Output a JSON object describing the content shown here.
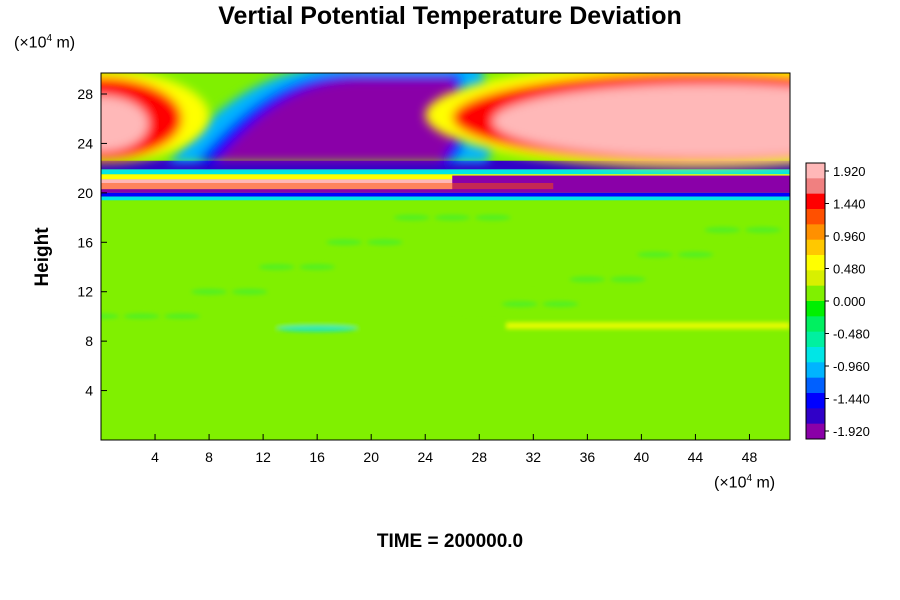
{
  "chart_data": {
    "type": "heatmap",
    "title": "Vertial Potential Temperature Deviation",
    "ylabel": "Height",
    "y_unit": {
      "prefix": "(×10",
      "exp": "4",
      "suffix": " m)"
    },
    "x_unit": {
      "prefix": "(×10",
      "exp": "4",
      "suffix": " m)"
    },
    "footer": "TIME = 200000.0",
    "xlim": [
      0,
      51
    ],
    "ylim": [
      0,
      29.7
    ],
    "x_ticks": [
      4,
      8,
      12,
      16,
      20,
      24,
      28,
      32,
      36,
      40,
      44,
      48
    ],
    "y_ticks": [
      4,
      8,
      12,
      16,
      20,
      24,
      28
    ],
    "colorbar": {
      "min": -2.0,
      "max": 2.0,
      "labels": [
        "1.920",
        "1.440",
        "0.960",
        "0.480",
        "0.000",
        "-0.480",
        "-0.960",
        "-1.440",
        "-1.920"
      ],
      "colors": [
        "#8a00a8",
        "#3000c8",
        "#0000ff",
        "#0060ff",
        "#00b4ff",
        "#00e6e6",
        "#00f0a0",
        "#00f060",
        "#00f000",
        "#80f000",
        "#d8f000",
        "#ffff00",
        "#ffc800",
        "#ff9000",
        "#ff5000",
        "#ff0000",
        "#f08080",
        "#ffb8b8"
      ]
    },
    "features": [
      {
        "name": "negative-anomaly-upper-left",
        "x": [
          6,
          27
        ],
        "y": [
          22.5,
          29.7
        ],
        "value": -2.0
      },
      {
        "name": "positive-anomaly-upper-right",
        "x": [
          32,
          51
        ],
        "y": [
          22.5,
          29.7
        ],
        "value": 2.0
      },
      {
        "name": "positive-anomaly-left-edge",
        "x": [
          0,
          5
        ],
        "y": [
          22.5,
          29.7
        ],
        "value": 1.9
      },
      {
        "name": "mixed-band",
        "x": [
          0,
          51
        ],
        "y": [
          19.5,
          22.5
        ],
        "value": 0.0
      },
      {
        "name": "weak-band",
        "x": [
          0,
          51
        ],
        "y": [
          9,
          9.5
        ],
        "value": 0.3
      },
      {
        "name": "near-zero-lower",
        "x": [
          0,
          51
        ],
        "y": [
          0,
          19.5
        ],
        "value": 0.0
      }
    ]
  }
}
